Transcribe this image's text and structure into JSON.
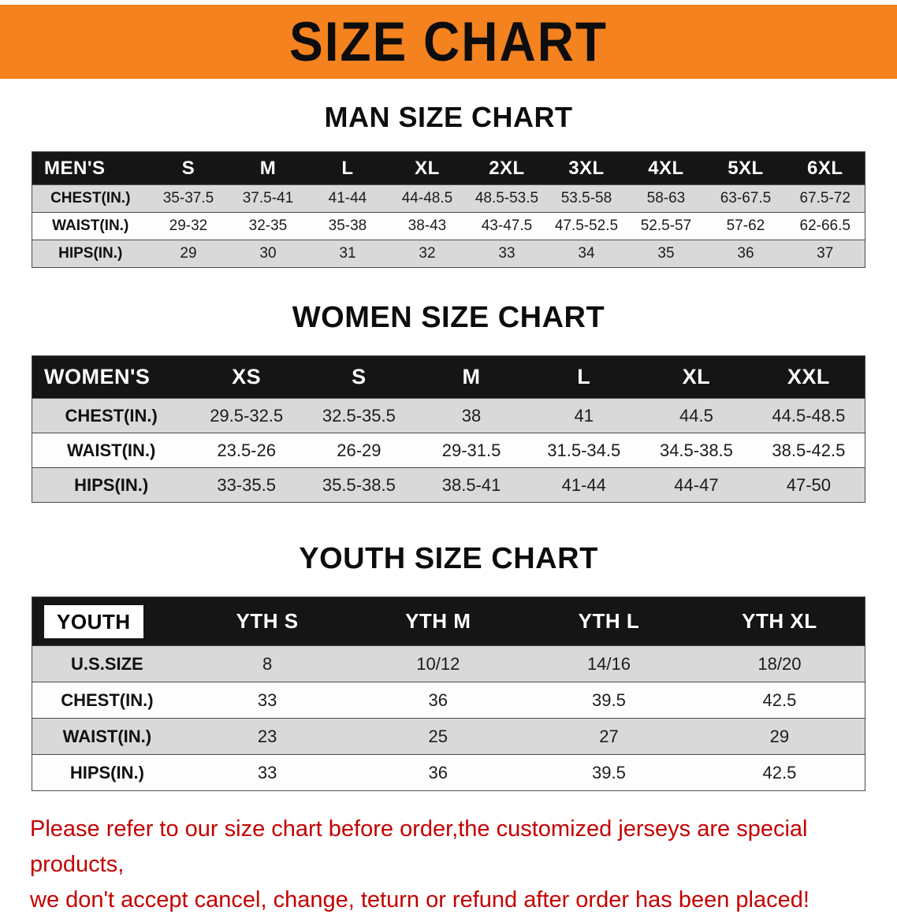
{
  "banner": {
    "title": "SIZE CHART"
  },
  "sections": [
    {
      "heading": "MAN SIZE CHART",
      "table": {
        "header": [
          "MEN'S",
          "S",
          "M",
          "L",
          "XL",
          "2XL",
          "3XL",
          "4XL",
          "5XL",
          "6XL"
        ],
        "rows": [
          [
            "CHEST(IN.)",
            "35-37.5",
            "37.5-41",
            "41-44",
            "44-48.5",
            "48.5-53.5",
            "53.5-58",
            "58-63",
            "63-67.5",
            "67.5-72"
          ],
          [
            "WAIST(IN.)",
            "29-32",
            "32-35",
            "35-38",
            "38-43",
            "43-47.5",
            "47.5-52.5",
            "52.5-57",
            "57-62",
            "62-66.5"
          ],
          [
            "HIPS(IN.)",
            "29",
            "30",
            "31",
            "32",
            "33",
            "34",
            "35",
            "36",
            "37"
          ]
        ]
      }
    },
    {
      "heading": "WOMEN SIZE CHART",
      "table": {
        "header": [
          "WOMEN'S",
          "XS",
          "S",
          "M",
          "L",
          "XL",
          "XXL"
        ],
        "rows": [
          [
            "CHEST(IN.)",
            "29.5-32.5",
            "32.5-35.5",
            "38",
            "41",
            "44.5",
            "44.5-48.5"
          ],
          [
            "WAIST(IN.)",
            "23.5-26",
            "26-29",
            "29-31.5",
            "31.5-34.5",
            "34.5-38.5",
            "38.5-42.5"
          ],
          [
            "HIPS(IN.)",
            "33-35.5",
            "35.5-38.5",
            "38.5-41",
            "41-44",
            "44-47",
            "47-50"
          ]
        ]
      }
    },
    {
      "heading": "YOUTH SIZE CHART",
      "table": {
        "label_boxed": true,
        "header": [
          "YOUTH",
          "YTH S",
          "YTH M",
          "YTH L",
          "YTH XL"
        ],
        "rows": [
          [
            "U.S.SIZE",
            "8",
            "10/12",
            "14/16",
            "18/20"
          ],
          [
            "CHEST(IN.)",
            "33",
            "36",
            "39.5",
            "42.5"
          ],
          [
            "WAIST(IN.)",
            "23",
            "25",
            "27",
            "29"
          ],
          [
            "HIPS(IN.)",
            "33",
            "36",
            "39.5",
            "42.5"
          ]
        ]
      }
    }
  ],
  "footer": {
    "line1": "Please refer to our size chart before order,the customized jerseys are special products,",
    "line2": "we don't accept cancel, change, teturn or refund after order has been placed!"
  },
  "colors": {
    "banner_orange": "#F4821F",
    "header_black": "#151515",
    "row_gray": "#D9D9D9",
    "footer_red": "#C40000"
  }
}
